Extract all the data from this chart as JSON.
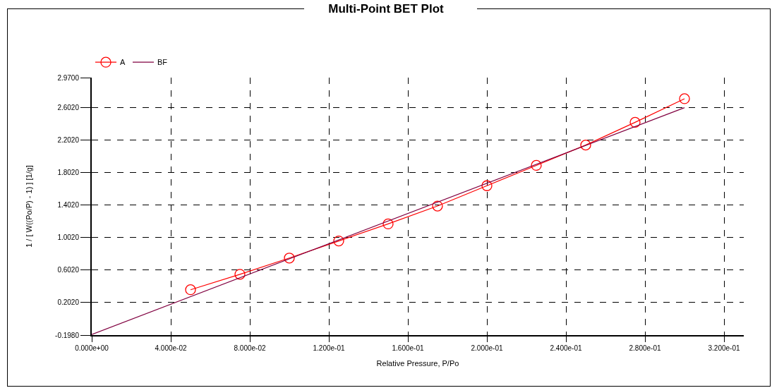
{
  "chart_data": {
    "type": "line",
    "title": "Multi-Point BET Plot",
    "xlabel": "Relative Pressure, P/Po",
    "ylabel": "1 / [ W((Po/P) - 1) ] [1/g]",
    "series": [
      {
        "name": "A",
        "color": "#ff0000",
        "marker": "circle",
        "x": [
          0.05,
          0.075,
          0.1,
          0.125,
          0.15,
          0.175,
          0.2,
          0.225,
          0.25,
          0.275,
          0.3
        ],
        "values": [
          0.36,
          0.55,
          0.75,
          0.96,
          1.17,
          1.39,
          1.64,
          1.89,
          2.14,
          2.42,
          2.71
        ]
      },
      {
        "name": "BF",
        "color": "#800040",
        "marker": "none",
        "x": [
          0,
          0.3
        ],
        "values": [
          -0.19,
          2.6
        ]
      }
    ],
    "xlim": [
      0,
      0.33
    ],
    "xticks": [
      {
        "value": 0,
        "label": "0.000e+00"
      },
      {
        "value": 0.04,
        "label": "4.000e-02"
      },
      {
        "value": 0.08,
        "label": "8.000e-02"
      },
      {
        "value": 0.12,
        "label": "1.200e-01"
      },
      {
        "value": 0.16,
        "label": "1.600e-01"
      },
      {
        "value": 0.2,
        "label": "2.000e-01"
      },
      {
        "value": 0.24,
        "label": "2.400e-01"
      },
      {
        "value": 0.28,
        "label": "2.800e-01"
      },
      {
        "value": 0.32,
        "label": "3.200e-01"
      }
    ],
    "ylim": [
      -0.198,
      2.97
    ],
    "yticks": [
      {
        "value": -0.198,
        "label": "-0.1980"
      },
      {
        "value": 0.202,
        "label": "0.2020"
      },
      {
        "value": 0.602,
        "label": "0.6020"
      },
      {
        "value": 1.002,
        "label": "1.0020"
      },
      {
        "value": 1.402,
        "label": "1.4020"
      },
      {
        "value": 1.802,
        "label": "1.8020"
      },
      {
        "value": 2.202,
        "label": "2.2020"
      },
      {
        "value": 2.602,
        "label": "2.6020"
      },
      {
        "value": 2.97,
        "label": "2.9700"
      }
    ],
    "grid": true,
    "legend": "top left"
  }
}
